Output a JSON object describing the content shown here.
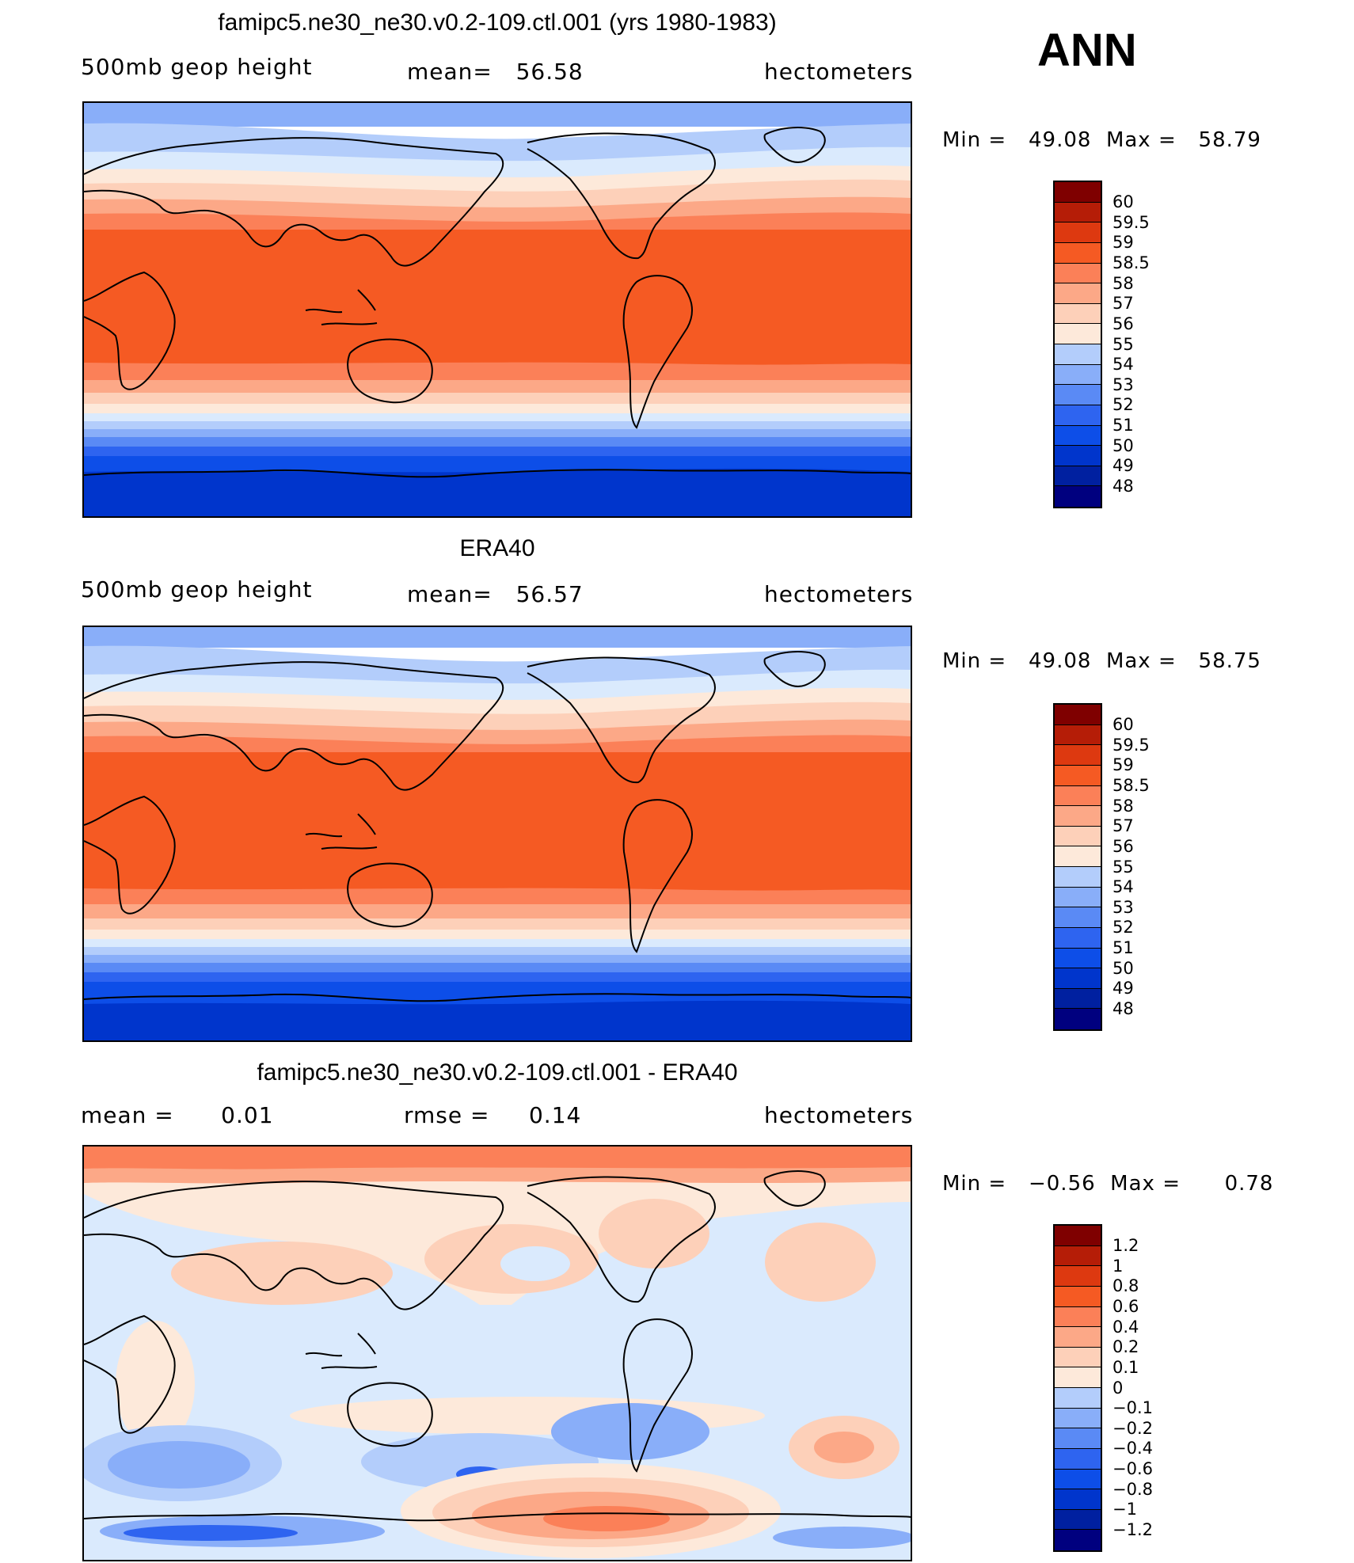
{
  "season": "ANN",
  "palette": {
    "ink": "#000000",
    "continent_line": "#000000",
    "scale": [
      "#00007f",
      "#0020a0",
      "#0035cc",
      "#0d4ee8",
      "#2e64f0",
      "#5a8af5",
      "#89aef9",
      "#b3cdfb",
      "#daeafd",
      "#fde9da",
      "#fdd0b9",
      "#fca887",
      "#fb8058",
      "#f55a23",
      "#dd3910",
      "#b51d07",
      "#7f0000"
    ]
  },
  "panels": [
    {
      "id": "model",
      "title": "famipc5.ne30_ne30.v0.2-109.ctl.001 (yrs 1980-1983)",
      "left_label": "500mb geop height",
      "center_label": "mean=   56.58",
      "right_label": "hectometers",
      "stats": "Min =   49.08  Max =   58.79",
      "colorbar_labels": [
        "60",
        "59.5",
        "59",
        "58.5",
        "58",
        "57",
        "56",
        "55",
        "54",
        "53",
        "52",
        "51",
        "50",
        "49",
        "48"
      ]
    },
    {
      "id": "obs",
      "title": "ERA40",
      "left_label": "500mb geop height",
      "center_label": "mean=   56.57",
      "right_label": "hectometers",
      "stats": "Min =   49.08  Max =   58.75",
      "colorbar_labels": [
        "60",
        "59.5",
        "59",
        "58.5",
        "58",
        "57",
        "56",
        "55",
        "54",
        "53",
        "52",
        "51",
        "50",
        "49",
        "48"
      ]
    },
    {
      "id": "diff",
      "title": "famipc5.ne30_ne30.v0.2-109.ctl.001 - ERA40",
      "left_label": "mean =      0.01",
      "center_label": "rmse =     0.14",
      "right_label": "hectometers",
      "stats": "Min =   −0.56  Max =      0.78",
      "colorbar_labels": [
        "1.2",
        "1",
        "0.8",
        "0.6",
        "0.4",
        "0.2",
        "0.1",
        "0",
        "−0.1",
        "−0.2",
        "−0.4",
        "−0.6",
        "−0.8",
        "−1",
        "−1.2"
      ]
    }
  ]
}
